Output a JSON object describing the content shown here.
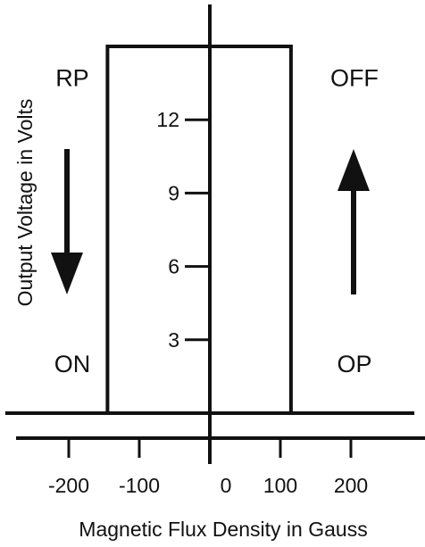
{
  "chart_data": {
    "type": "line",
    "xlabel": "Magnetic Flux  Density in Gauss",
    "ylabel": "Output Voltage in Volts",
    "x_ticks": [
      -200,
      -100,
      0,
      100,
      200
    ],
    "x_tick_labels": [
      "-200",
      "-100",
      "0",
      "100",
      "200"
    ],
    "y_ticks": [
      3,
      6,
      9,
      12
    ],
    "y_tick_labels": [
      "3",
      "6",
      "9",
      "12"
    ],
    "xlim": [
      -290,
      290
    ],
    "ylim": [
      0,
      16
    ],
    "grid": false,
    "series": [
      {
        "x": [
          -290,
          115,
          115,
          -145,
          -145,
          290
        ],
        "y": [
          0,
          0,
          15,
          15,
          0,
          0
        ]
      }
    ],
    "arrows": [
      {
        "direction": "down",
        "side": "left"
      },
      {
        "direction": "up",
        "side": "right"
      }
    ],
    "annotations": [
      {
        "text": "RP",
        "x": -195,
        "y": 13.7
      },
      {
        "text": "ON",
        "x": -195,
        "y": 2.0
      },
      {
        "text": "OFF",
        "x": 205,
        "y": 13.7
      },
      {
        "text": "OP",
        "x": 205,
        "y": 2.0
      }
    ],
    "colors": {
      "line": "#111111",
      "background": "#ffffff"
    }
  }
}
